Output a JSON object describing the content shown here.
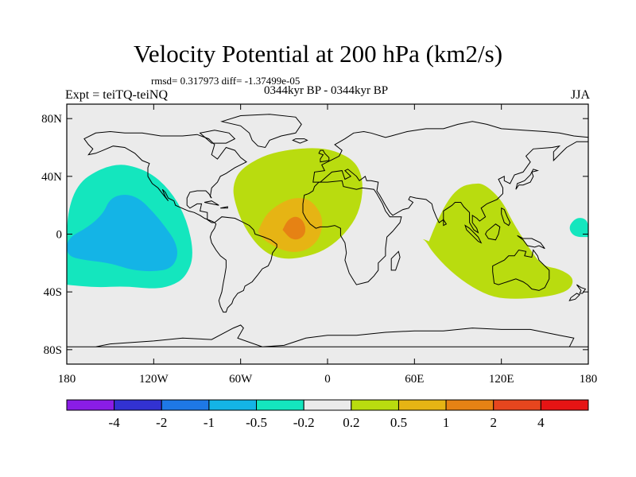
{
  "chart_data": {
    "type": "heatmap",
    "title": "Velocity Potential at 200 hPa (km2/s)",
    "stats_text": "rmsd= 0.317973 diff= -1.37499e-05",
    "left_label": "Expt = teiTQ-teiNQ",
    "center_label": "0344kyr BP - 0344kyr BP",
    "right_label": "JJA",
    "projection": "cylindrical equidistant",
    "x_range": [
      -180,
      180
    ],
    "y_range": [
      -90,
      90
    ],
    "x_ticks": [
      {
        "value": -180,
        "label": "180"
      },
      {
        "value": -120,
        "label": "120W"
      },
      {
        "value": -60,
        "label": "60W"
      },
      {
        "value": 0,
        "label": "0"
      },
      {
        "value": 60,
        "label": "60E"
      },
      {
        "value": 120,
        "label": "120E"
      },
      {
        "value": 180,
        "label": "180"
      }
    ],
    "y_ticks": [
      {
        "value": 80,
        "label": "80N"
      },
      {
        "value": 40,
        "label": "40N"
      },
      {
        "value": 0,
        "label": "0"
      },
      {
        "value": -40,
        "label": "40S"
      },
      {
        "value": -80,
        "label": "80S"
      }
    ],
    "colorbar": {
      "labels": [
        "-4",
        "-2",
        "-1",
        "-0.5",
        "-0.2",
        "0.2",
        "0.5",
        "1",
        "2",
        "4"
      ],
      "colors": [
        "#8a1de6",
        "#3232d2",
        "#1e78e6",
        "#14b4e6",
        "#14e6be",
        "#ebebeb",
        "#b9dc0f",
        "#e6b414",
        "#e68214",
        "#e6461e",
        "#e61414"
      ]
    },
    "regions": [
      {
        "name": "north-pacific-negative",
        "range": "-0.5 to -0.2",
        "color": "#14e6be",
        "lon": [
          -180,
          -180,
          -150,
          -125,
          -108,
          -97,
          -92,
          -98,
          -108,
          -120,
          -140,
          -160,
          -180
        ],
        "lat": [
          -35,
          30,
          50,
          45,
          30,
          10,
          -15,
          -30,
          -36,
          -38,
          -36,
          -37,
          -35
        ]
      },
      {
        "name": "west-pacific-edge-negative",
        "range": "-0.5 to -0.2",
        "color": "#14e6be",
        "lon": [
          180,
          180,
          172,
          166,
          170,
          180
        ],
        "lat": [
          -2,
          10,
          12,
          5,
          -2,
          -2
        ]
      },
      {
        "name": "central-pacific-core",
        "range": "-1 to -0.5",
        "color": "#14b4e6",
        "lon": [
          -180,
          -165,
          -155,
          -150,
          -140,
          -130,
          -120,
          -112,
          -105,
          -103,
          -108,
          -120,
          -135,
          -150,
          -168,
          -180
        ],
        "lat": [
          -3,
          5,
          14,
          25,
          28,
          25,
          15,
          5,
          -5,
          -15,
          -24,
          -26,
          -25,
          -20,
          -18,
          -15
        ]
      },
      {
        "name": "atlantic-positive",
        "range": "0.2 to 0.5",
        "color": "#b9dc0f",
        "lon": [
          -65,
          -60,
          -45,
          -30,
          -10,
          5,
          20,
          25,
          22,
          12,
          0,
          -12,
          -30,
          -45,
          -58,
          -65
        ],
        "lat": [
          35,
          45,
          54,
          58,
          60,
          58,
          50,
          35,
          15,
          0,
          -10,
          -15,
          -18,
          -12,
          5,
          25
        ]
      },
      {
        "name": "atlantic-medium",
        "range": "0.5 to 1",
        "color": "#e6b414",
        "lon": [
          -48,
          -43,
          -35,
          -25,
          -15,
          -8,
          -3,
          -5,
          -12,
          -22,
          -32,
          -41,
          -46,
          -48
        ],
        "lat": [
          2,
          13,
          20,
          25,
          25,
          20,
          10,
          -2,
          -10,
          -13,
          -11,
          -6,
          -2,
          2
        ]
      },
      {
        "name": "atlantic-core",
        "range": "1 to 2",
        "color": "#e68214",
        "lon": [
          -31,
          -28,
          -24,
          -20,
          -16,
          -15,
          -17,
          -21,
          -26,
          -31
        ],
        "lat": [
          3,
          9,
          12,
          12,
          8,
          2,
          -2,
          -4,
          -3,
          3
        ]
      },
      {
        "name": "indo-australia-positive",
        "range": "0.2 to 0.5",
        "color": "#b9dc0f",
        "lon": [
          70,
          76,
          84,
          92,
          100,
          108,
          120,
          128,
          138,
          148,
          160,
          170,
          168,
          158,
          145,
          130,
          115,
          100,
          85,
          72,
          68,
          65,
          70
        ],
        "lat": [
          -5,
          10,
          25,
          33,
          35,
          35,
          24,
          8,
          -8,
          -22,
          -24,
          -30,
          -38,
          -42,
          -44,
          -45,
          -44,
          -37,
          -26,
          -12,
          -5,
          -3,
          -5
        ]
      }
    ]
  }
}
